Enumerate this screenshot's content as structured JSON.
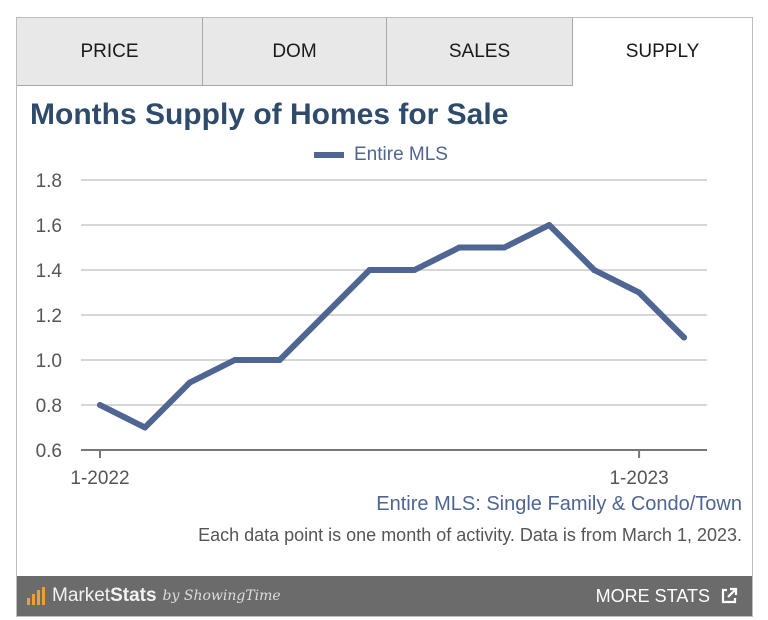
{
  "tabs": [
    {
      "label": "PRICE",
      "active": false
    },
    {
      "label": "DOM",
      "active": false
    },
    {
      "label": "SALES",
      "active": false
    },
    {
      "label": "SUPPLY",
      "active": true
    }
  ],
  "title": "Months Supply of Homes for Sale",
  "source_text": "Entire MLS: Single Family & Condo/Town",
  "note_text": "Each data point is one month of activity. Data is from March 1, 2023.",
  "footer": {
    "brand_market": "Market",
    "brand_stats": "Stats",
    "brand_by": "by ShowingTime",
    "more_stats": "MORE STATS",
    "icons": [
      "bar-chart-icon",
      "external-link-icon"
    ]
  },
  "colors": {
    "series": "#4f6592",
    "title": "#2f4b6b",
    "grid": "#c8c8c8",
    "footer_bg": "#6b6b6b",
    "brand_accent": "#f0a030"
  },
  "chart_data": {
    "type": "line",
    "title": "Months Supply of Homes for Sale",
    "x": [
      "1-2022",
      "2-2022",
      "3-2022",
      "4-2022",
      "5-2022",
      "6-2022",
      "7-2022",
      "8-2022",
      "9-2022",
      "10-2022",
      "11-2022",
      "12-2022",
      "1-2023",
      "2-2023"
    ],
    "x_tick_labels": [
      "1-2022",
      "1-2023"
    ],
    "series": [
      {
        "name": "Entire MLS",
        "values": [
          0.8,
          0.7,
          0.9,
          1.0,
          1.0,
          1.2,
          1.4,
          1.4,
          1.5,
          1.5,
          1.6,
          1.4,
          1.3,
          1.1
        ]
      }
    ],
    "ylim": [
      0.6,
      1.8
    ],
    "yticks": [
      "0.6",
      "0.8",
      "1.0",
      "1.2",
      "1.4",
      "1.6",
      "1.8"
    ],
    "xlabel": "",
    "ylabel": "",
    "grid": true,
    "legend": "top-center"
  }
}
